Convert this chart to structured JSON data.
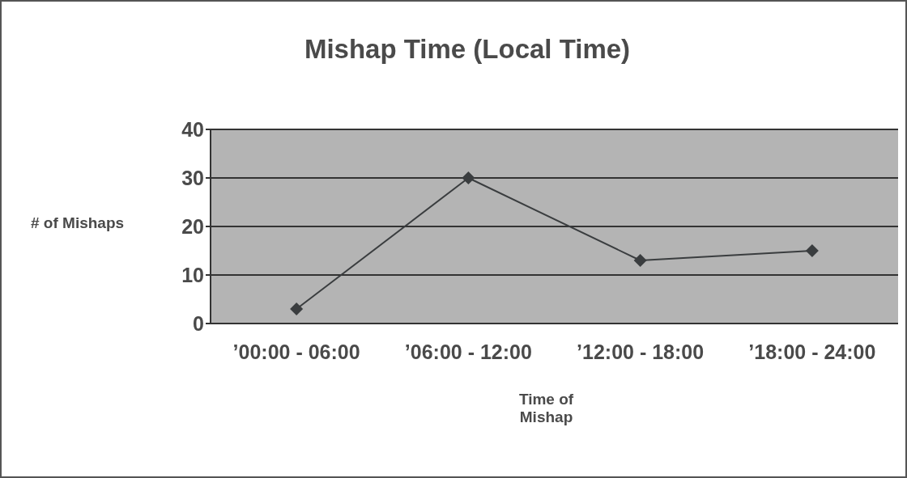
{
  "chart_data": {
    "type": "line",
    "title": "Mishap Time (Local Time)",
    "xlabel": "Time of Mishap",
    "ylabel": "# of Mishaps",
    "categories": [
      "’00:00 - 06:00",
      "’06:00 - 12:00",
      "’12:00 - 18:00",
      "’18:00 - 24:00"
    ],
    "series": [
      {
        "color": "#3a3d3f",
        "values": [
          3,
          30,
          13,
          15
        ]
      }
    ],
    "ylim": [
      0,
      40
    ],
    "yticks": [
      0,
      10,
      20,
      30,
      40
    ],
    "grid": "y",
    "marker": "diamond",
    "line_style": "solid"
  }
}
